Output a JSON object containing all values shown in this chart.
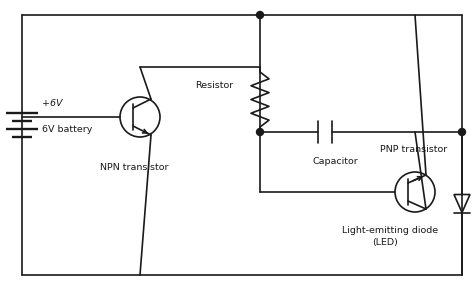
{
  "bg_color": "#ffffff",
  "line_color": "#1a1a1a",
  "line_width": 1.2,
  "dot_size": 3.5,
  "labels": {
    "battery_plus": "+6V",
    "battery_name": "6V battery",
    "resistor": "Resistor",
    "npn": "NPN transistor",
    "pnp": "PNP transistor",
    "capacitor": "Capacitor",
    "led_line1": "Light-emitting diode",
    "led_line2": "(LED)"
  },
  "font_size": 6.8
}
